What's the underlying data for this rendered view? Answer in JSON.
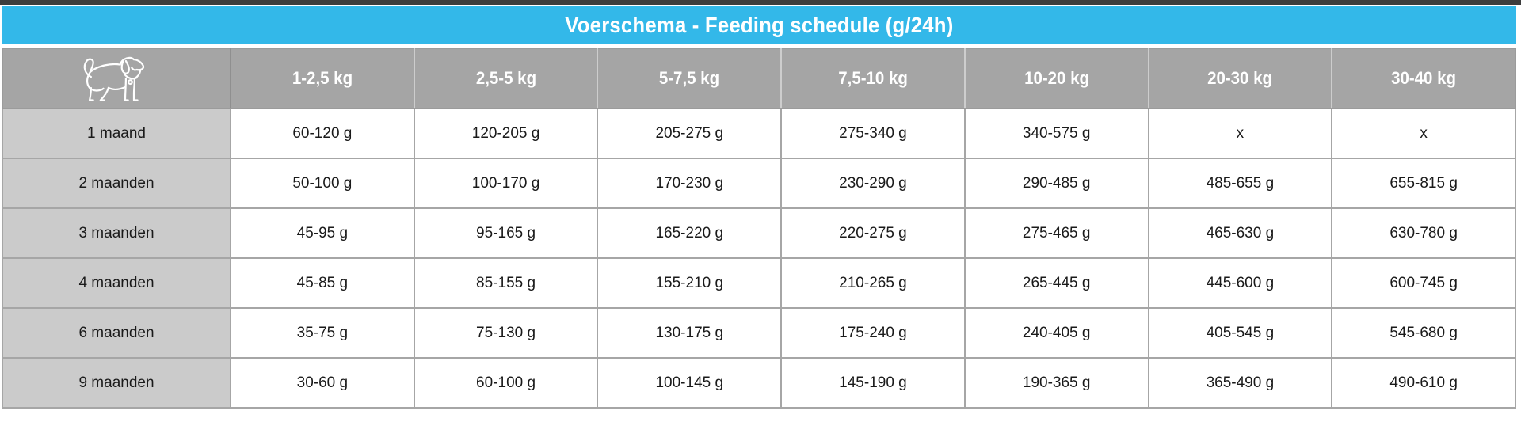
{
  "title": "Voerschema - Feeding schedule (g/24h)",
  "table": {
    "corner_icon": "dog-icon",
    "columns": [
      "1-2,5 kg",
      "2,5-5 kg",
      "5-7,5 kg",
      "7,5-10 kg",
      "10-20 kg",
      "20-30 kg",
      "30-40 kg"
    ],
    "rows": [
      {
        "label": "1 maand",
        "values": [
          "60-120 g",
          "120-205 g",
          "205-275 g",
          "275-340 g",
          "340-575 g",
          "x",
          "x"
        ]
      },
      {
        "label": "2 maanden",
        "values": [
          "50-100 g",
          "100-170 g",
          "170-230 g",
          "230-290 g",
          "290-485 g",
          "485-655 g",
          "655-815 g"
        ]
      },
      {
        "label": "3 maanden",
        "values": [
          "45-95 g",
          "95-165 g",
          "165-220 g",
          "220-275 g",
          "275-465 g",
          "465-630 g",
          "630-780 g"
        ]
      },
      {
        "label": "4 maanden",
        "values": [
          "45-85 g",
          "85-155 g",
          "155-210 g",
          "210-265 g",
          "265-445 g",
          "445-600 g",
          "600-745 g"
        ]
      },
      {
        "label": "6 maanden",
        "values": [
          "35-75 g",
          "75-130 g",
          "130-175 g",
          "175-240 g",
          "240-405 g",
          "405-545 g",
          "545-680 g"
        ]
      },
      {
        "label": "9 maanden",
        "values": [
          "30-60 g",
          "60-100 g",
          "100-145 g",
          "145-190 g",
          "190-365 g",
          "365-490 g",
          "490-610 g"
        ]
      }
    ]
  },
  "chart_data": {
    "type": "table",
    "title": "Voerschema - Feeding schedule (g/24h)",
    "columns": [
      "1-2,5 kg",
      "2,5-5 kg",
      "5-7,5 kg",
      "7,5-10 kg",
      "10-20 kg",
      "20-30 kg",
      "30-40 kg"
    ],
    "row_labels": [
      "1 maand",
      "2 maanden",
      "3 maanden",
      "4 maanden",
      "6 maanden",
      "9 maanden"
    ],
    "values": [
      [
        "60-120 g",
        "120-205 g",
        "205-275 g",
        "275-340 g",
        "340-575 g",
        "x",
        "x"
      ],
      [
        "50-100 g",
        "100-170 g",
        "170-230 g",
        "230-290 g",
        "290-485 g",
        "485-655 g",
        "655-815 g"
      ],
      [
        "45-95 g",
        "95-165 g",
        "165-220 g",
        "220-275 g",
        "275-465 g",
        "465-630 g",
        "630-780 g"
      ],
      [
        "45-85 g",
        "85-155 g",
        "155-210 g",
        "210-265 g",
        "265-445 g",
        "445-600 g",
        "600-745 g"
      ],
      [
        "35-75 g",
        "75-130 g",
        "130-175 g",
        "175-240 g",
        "240-405 g",
        "405-545 g",
        "545-680 g"
      ],
      [
        "30-60 g",
        "60-100 g",
        "100-145 g",
        "145-190 g",
        "190-365 g",
        "365-490 g",
        "490-610 g"
      ]
    ]
  },
  "colors": {
    "accent_cyan": "#33b8e9",
    "header_gray": "#a5a5a5",
    "label_gray": "#cbcbcb",
    "border_gray": "#9b9b9b",
    "top_strip": "#3d3d3d",
    "header_text": "#ffffff",
    "cell_text": "#1a1a1a"
  }
}
